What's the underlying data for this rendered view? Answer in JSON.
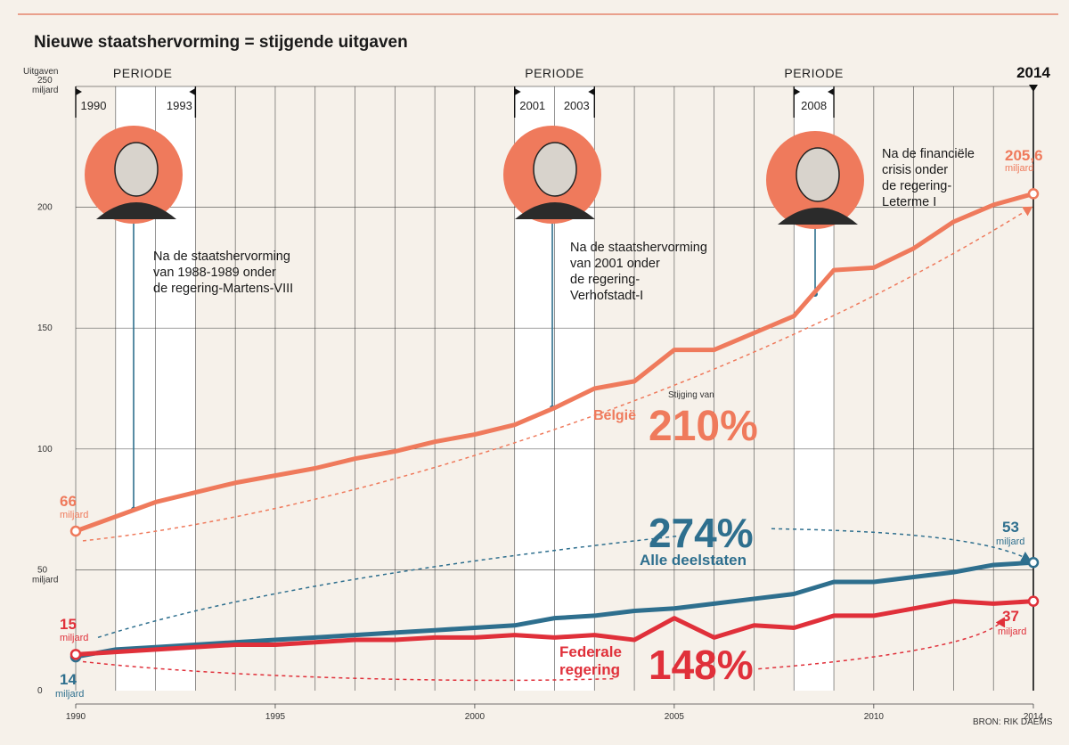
{
  "title": "Nieuwe staatshervorming = stijgende uitgaven",
  "source": "BRON: RIK DAEMS",
  "colors": {
    "belgie": "#ef7a5c",
    "deelstaten": "#2e6f8e",
    "federaal": "#e0303a",
    "grid": "#333333"
  },
  "periods": [
    {
      "label": "PERIODE",
      "start_label": "1990",
      "end_label": "1993",
      "from": 1991,
      "to": 1993
    },
    {
      "label": "PERIODE",
      "start_label": "2001",
      "end_label": "2003",
      "from": 2001,
      "to": 2003
    },
    {
      "label": "PERIODE",
      "start_label": "2008",
      "end_label": "",
      "from": 2008,
      "to": 2009
    }
  ],
  "marker_2014": "2014",
  "annotations": [
    {
      "year": 1991.5,
      "lines": [
        "Na de staatshervorming",
        "van 1988-1989 onder",
        "de regering-Martens-VIII"
      ]
    },
    {
      "year": 2002,
      "lines": [
        "Na de staatshervorming",
        "van 2001 onder",
        "de regering-",
        "Verhofstadt-I"
      ]
    },
    {
      "year": 2008.7,
      "lines": [
        "Na de financiële",
        "crisis onder",
        "de regering-",
        "Leterme I"
      ]
    }
  ],
  "labels": {
    "belgie_start_value": "66",
    "belgie_start_unit": "miljard",
    "belgie_end_value": "205,6",
    "belgie_end_unit": "miljard",
    "deel_start_value": "14",
    "deel_start_unit": "miljard",
    "deel_end_value": "53",
    "deel_end_unit": "miljard",
    "fed_start_value": "15",
    "fed_start_unit": "miljard",
    "fed_end_value": "37",
    "fed_end_unit": "miljard",
    "belgie_name": "België",
    "belgie_rise_small": "Stijging van",
    "belgie_pct": "210%",
    "deel_pct": "274%",
    "deel_name": "Alle deelstaten",
    "fed_name_1": "Federale",
    "fed_name_2": "regering",
    "fed_pct": "148%"
  },
  "chart_data": {
    "type": "line",
    "title": "Nieuwe staatshervorming = stijgende uitgaven",
    "ylabel": "Uitgaven",
    "ylim": [
      0,
      250
    ],
    "xlim": [
      1990,
      2014
    ],
    "x_ticks": [
      "1990",
      "1995",
      "2000",
      "2005",
      "2010",
      "2014"
    ],
    "y_ticks": [
      "0",
      "50",
      "100",
      "150",
      "200",
      "250"
    ],
    "y_tick_units": {
      "50": "miljard",
      "250": "miljard"
    },
    "grid": true,
    "x": [
      1990,
      1991,
      1992,
      1993,
      1994,
      1995,
      1996,
      1997,
      1998,
      1999,
      2000,
      2001,
      2002,
      2003,
      2004,
      2005,
      2006,
      2007,
      2008,
      2009,
      2010,
      2011,
      2012,
      2013,
      2014
    ],
    "series": [
      {
        "name": "België",
        "values": [
          66,
          72,
          78,
          82,
          86,
          89,
          92,
          96,
          99,
          103,
          106,
          110,
          117,
          125,
          128,
          141,
          141,
          148,
          155,
          174,
          175,
          183,
          194,
          201,
          205.6
        ]
      },
      {
        "name": "Alle deelstaten",
        "values": [
          14,
          17,
          18,
          19,
          20,
          21,
          22,
          23,
          24,
          25,
          26,
          27,
          30,
          31,
          33,
          34,
          36,
          38,
          40,
          45,
          45,
          47,
          49,
          52,
          53
        ]
      },
      {
        "name": "Federale regering",
        "values": [
          15,
          16,
          17,
          18,
          19,
          19,
          20,
          21,
          21,
          22,
          22,
          23,
          22,
          23,
          21,
          30,
          22,
          27,
          26,
          31,
          31,
          34,
          37,
          36,
          37
        ]
      }
    ]
  }
}
